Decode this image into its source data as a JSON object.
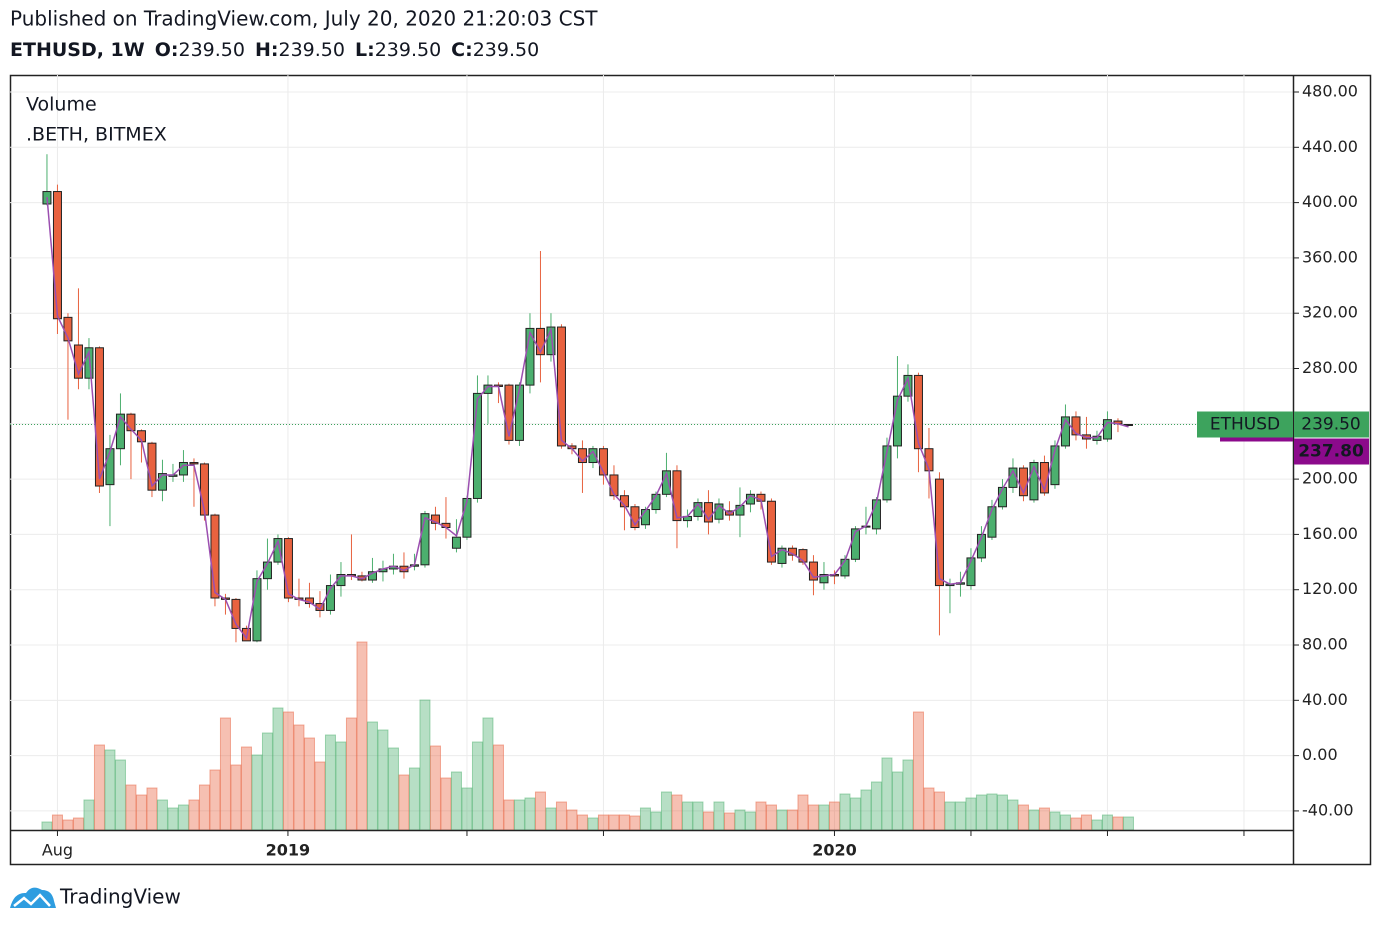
{
  "chart_data": {
    "type": "candlestick",
    "title": "Published on TradingView.com, July 20, 2020 21:20:03 CST",
    "symbol": "ETHUSD, 1W",
    "header_ohlc": [
      {
        "name": "O:",
        "value": 239.5,
        "label": "239.50"
      },
      {
        "name": "H:",
        "value": 239.5,
        "label": "239.50"
      },
      {
        "name": "L:",
        "value": 239.5,
        "label": "239.50"
      },
      {
        "name": "C:",
        "value": 239.5,
        "label": "239.50"
      }
    ],
    "legend": [
      "Volume",
      ".BETH, BITMEX"
    ],
    "brand": "TradingView",
    "up_color": "#4caf6e",
    "down_color": "#e8623f",
    "ma_color": "#9b4fb0",
    "open": [
      399,
      408,
      317,
      297,
      273,
      295,
      196,
      222,
      247,
      235,
      226,
      192,
      202,
      203,
      212,
      211,
      174,
      114,
      113,
      92,
      83,
      128,
      140,
      157,
      114,
      114,
      110,
      105,
      123,
      131,
      130,
      127,
      133,
      135,
      137,
      137,
      138,
      174,
      168,
      150,
      158,
      186,
      262,
      268,
      268,
      228,
      268,
      309,
      290,
      310,
      224,
      222,
      212,
      222,
      203,
      188,
      180,
      167,
      178,
      189,
      206,
      170,
      173,
      183,
      171,
      177,
      174,
      182,
      189,
      184,
      139,
      150,
      149,
      140,
      125,
      131,
      130,
      142,
      166,
      164,
      185,
      224,
      260,
      275,
      222,
      200,
      123,
      124,
      123,
      143,
      158,
      180,
      194,
      208,
      185,
      212,
      196,
      224,
      245,
      232,
      228,
      229,
      242,
      239.5
    ],
    "high": [
      435,
      413,
      320,
      338,
      302,
      296,
      232,
      262,
      248,
      236,
      227,
      214,
      211,
      221,
      215,
      212,
      175,
      117,
      114,
      94,
      134,
      157,
      160,
      158,
      128,
      125,
      119,
      131,
      140,
      160,
      133,
      143,
      141,
      146,
      147,
      146,
      177,
      180,
      187,
      171,
      188,
      275,
      275,
      270,
      269,
      270,
      320,
      365,
      320,
      312,
      226,
      228,
      224,
      224,
      210,
      192,
      182,
      180,
      191,
      219,
      210,
      178,
      186,
      192,
      186,
      184,
      194,
      192,
      191,
      186,
      152,
      152,
      150,
      145,
      140,
      134,
      145,
      166,
      180,
      187,
      230,
      289,
      283,
      277,
      237,
      205,
      128,
      133,
      150,
      166,
      185,
      200,
      215,
      210,
      214,
      217,
      228,
      254,
      249,
      245,
      235,
      249,
      244,
      239.5
    ],
    "low": [
      398,
      305,
      243,
      265,
      265,
      190,
      166,
      210,
      200,
      212,
      187,
      184,
      198,
      198,
      180,
      170,
      108,
      102,
      82,
      83,
      82,
      120,
      138,
      111,
      108,
      107,
      100,
      102,
      115,
      127,
      126,
      125,
      126,
      131,
      128,
      134,
      136,
      163,
      157,
      147,
      156,
      183,
      240,
      255,
      225,
      224,
      262,
      270,
      285,
      222,
      218,
      190,
      208,
      196,
      185,
      163,
      163,
      164,
      175,
      187,
      150,
      165,
      170,
      160,
      168,
      170,
      158,
      176,
      178,
      138,
      136,
      141,
      138,
      116,
      120,
      124,
      128,
      140,
      160,
      160,
      183,
      215,
      256,
      205,
      186,
      87,
      103,
      115,
      120,
      140,
      156,
      178,
      190,
      184,
      183,
      188,
      193,
      222,
      228,
      222,
      225,
      227,
      234,
      239.5
    ],
    "close": [
      408,
      316,
      300,
      273,
      295,
      195,
      222,
      247,
      235,
      227,
      192,
      204,
      203,
      212,
      211,
      174,
      114,
      113,
      92,
      83,
      128,
      140,
      157,
      114,
      113,
      110,
      105,
      123,
      131,
      130,
      127,
      133,
      135,
      137,
      133,
      138,
      175,
      168,
      165,
      158,
      186,
      262,
      268,
      267,
      228,
      268,
      309,
      290,
      310,
      224,
      222,
      212,
      222,
      203,
      188,
      180,
      165,
      178,
      189,
      206,
      170,
      173,
      183,
      169,
      182,
      174,
      181,
      189,
      184,
      140,
      150,
      145,
      140,
      127,
      131,
      130,
      142,
      164,
      166,
      185,
      224,
      260,
      275,
      222,
      206,
      123,
      124,
      125,
      143,
      160,
      180,
      194,
      208,
      188,
      212,
      190,
      224,
      245,
      232,
      229,
      231,
      243,
      240,
      239.5
    ],
    "ma": [
      404,
      318,
      302,
      276,
      292,
      200,
      220,
      245,
      236,
      228,
      195,
      203,
      203,
      210,
      210,
      177,
      118,
      113,
      95,
      85,
      126,
      139,
      155,
      117,
      113,
      111,
      106,
      121,
      130,
      130,
      128,
      132,
      135,
      137,
      134,
      138,
      172,
      169,
      165,
      159,
      184,
      258,
      267,
      267,
      231,
      265,
      306,
      292,
      308,
      228,
      222,
      213,
      220,
      205,
      189,
      181,
      167,
      177,
      188,
      204,
      172,
      173,
      182,
      171,
      181,
      175,
      180,
      188,
      185,
      144,
      149,
      146,
      141,
      129,
      130,
      131,
      141,
      162,
      166,
      183,
      220,
      257,
      273,
      226,
      207,
      128,
      124,
      125,
      141,
      158,
      178,
      193,
      206,
      190,
      209,
      192,
      221,
      243,
      233,
      230,
      230,
      241,
      240,
      237.8
    ],
    "volume": [
      8,
      15,
      10,
      12,
      30,
      85,
      80,
      70,
      45,
      35,
      42,
      30,
      22,
      25,
      30,
      45,
      60,
      112,
      65,
      83,
      75,
      97,
      122,
      118,
      105,
      92,
      68,
      95,
      88,
      112,
      188,
      108,
      100,
      82,
      55,
      62,
      130,
      84,
      52,
      58,
      42,
      88,
      112,
      85,
      30,
      30,
      32,
      38,
      22,
      28,
      20,
      15,
      12,
      15,
      15,
      15,
      14,
      22,
      18,
      38,
      35,
      28,
      28,
      18,
      28,
      17,
      20,
      18,
      28,
      25,
      20,
      20,
      35,
      25,
      25,
      28,
      36,
      32,
      40,
      48,
      72,
      58,
      70,
      118,
      42,
      38,
      28,
      28,
      32,
      35,
      36,
      35,
      30,
      25,
      20,
      22,
      18,
      15,
      12,
      15,
      10,
      15,
      13,
      13
    ],
    "volume_ylim": [
      0,
      200
    ],
    "xlim": [
      -3.52,
      118.67
    ],
    "xticks": [
      {
        "value": 1,
        "label": "Aug"
      },
      {
        "value": 22.95,
        "label": "2019"
      },
      {
        "value": 40,
        "label": null
      },
      {
        "value": 53,
        "label": null
      },
      {
        "value": 75,
        "label": "2020"
      },
      {
        "value": 88,
        "label": null
      },
      {
        "value": 101,
        "label": null
      },
      {
        "value": 114,
        "label": null
      }
    ],
    "ylim": [
      -53.8,
      492.3
    ],
    "yticks": [
      {
        "value": -40,
        "label": "-40.00"
      },
      {
        "value": 0,
        "label": "0.00"
      },
      {
        "value": 40,
        "label": "40.00"
      },
      {
        "value": 80,
        "label": "80.00"
      },
      {
        "value": 120,
        "label": "120.00"
      },
      {
        "value": 160,
        "label": "160.00"
      },
      {
        "value": 200,
        "label": "200.00"
      },
      {
        "value": 240,
        "label": "240.00"
      },
      {
        "value": 280,
        "label": "280.00"
      },
      {
        "value": 320,
        "label": "320.00"
      },
      {
        "value": 360,
        "label": "360.00"
      },
      {
        "value": 400,
        "label": "400.00"
      },
      {
        "value": 440,
        "label": "440.00"
      },
      {
        "value": 480,
        "label": "480.00"
      }
    ],
    "grid": true,
    "last_price": {
      "name": "ETHUSD",
      "value": 239.5,
      "label": "239.50",
      "color": "#3da35d"
    },
    "ma_last": {
      "value": 237.8,
      "label": "237.80",
      "color": "#8b0a8b"
    }
  }
}
